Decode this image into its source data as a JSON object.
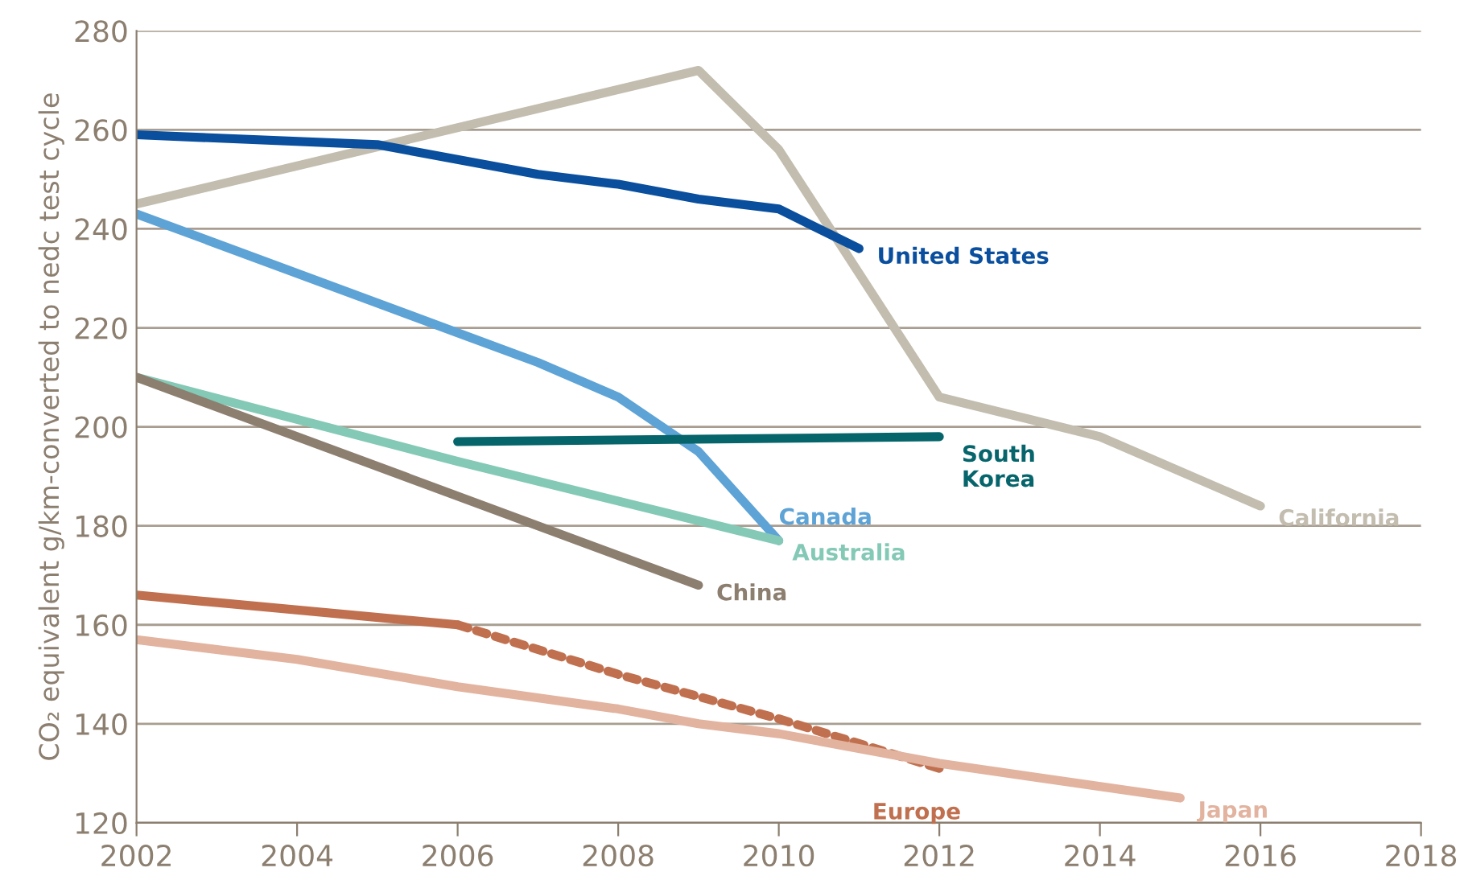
{
  "chart_data": {
    "type": "line",
    "ylabel": "CO₂ equivalent g/km-converted to nedc test cycle",
    "xlim": [
      2002,
      2018
    ],
    "xticks": [
      2002,
      2004,
      2006,
      2008,
      2010,
      2012,
      2014,
      2016,
      2018
    ],
    "ylim": [
      120,
      280
    ],
    "yticks": [
      120,
      140,
      160,
      180,
      200,
      220,
      240,
      260,
      280
    ],
    "grid": "y",
    "legend": false,
    "line_style": "solid",
    "series": [
      {
        "name": "California",
        "color": "#c2bdaf",
        "x": [
          2002,
          2009,
          2010,
          2012,
          2014,
          2016
        ],
        "values": [
          245,
          272,
          256,
          206,
          198,
          184
        ]
      },
      {
        "name": "United States",
        "color": "#0a4f9e",
        "x": [
          2002,
          2005,
          2007,
          2008,
          2009,
          2010,
          2011
        ],
        "values": [
          259,
          257,
          251,
          249,
          246,
          244,
          236
        ]
      },
      {
        "name": "Canada",
        "color": "#5ea3d6",
        "x": [
          2002,
          2005,
          2006,
          2007,
          2008,
          2009,
          2010
        ],
        "values": [
          243,
          225,
          219,
          213,
          206,
          195,
          177
        ]
      },
      {
        "name": "Australia",
        "color": "#84c9b5",
        "x": [
          2002,
          2006,
          2010
        ],
        "values": [
          210,
          193,
          177
        ]
      },
      {
        "name": "China",
        "color": "#8c7f70",
        "x": [
          2002,
          2009
        ],
        "values": [
          210,
          168
        ]
      },
      {
        "name": "South\nKorea",
        "color": "#06656b",
        "x": [
          2006,
          2012
        ],
        "values": [
          197,
          198
        ]
      },
      {
        "color": "#c0704f",
        "x": [
          2002,
          2006
        ],
        "values": [
          166,
          160
        ]
      },
      {
        "name": "Europe",
        "color": "#c0704f",
        "line_style": "dotted",
        "x": [
          2006,
          2008,
          2010,
          2012
        ],
        "values": [
          160,
          150,
          141,
          131
        ]
      },
      {
        "name": "Japan",
        "color": "#e2b39f",
        "x": [
          2002,
          2004,
          2006,
          2008,
          2009,
          2010,
          2012,
          2015
        ],
        "values": [
          157,
          153,
          147.5,
          143,
          140,
          138,
          132,
          125
        ]
      }
    ]
  }
}
